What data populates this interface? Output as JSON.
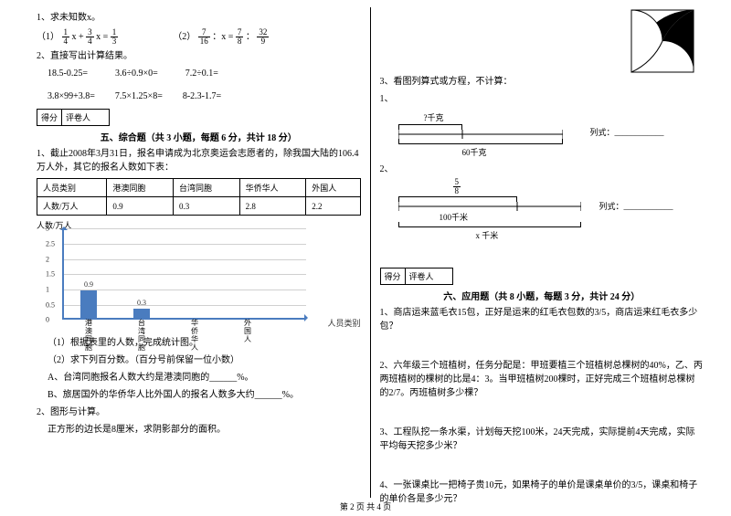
{
  "left": {
    "q1_title": "1、求未知数x。",
    "eq1_label": "（1）",
    "eq1_f1_n": "1",
    "eq1_f1_d": "4",
    "eq1_mid": " x + ",
    "eq1_f2_n": "3",
    "eq1_f2_d": "4",
    "eq1_eq": " x = ",
    "eq1_f3_n": "1",
    "eq1_f3_d": "3",
    "eq2_label": "（2）",
    "eq2_f1_n": "7",
    "eq2_f1_d": "16",
    "eq2_mid": " ：x = ",
    "eq2_f2_n": "7",
    "eq2_f2_d": "8",
    "eq2_colon": "：",
    "eq2_f3_n": "32",
    "eq2_f3_d": "9",
    "q2_title": "2、直接写出计算结果。",
    "calc_row1a": "18.5-0.25=",
    "calc_row1b": "3.6÷0.9×0=",
    "calc_row1c": "7.2÷0.1=",
    "calc_row2a": "3.8×99+3.8=",
    "calc_row2b": "7.5×1.25×8=",
    "calc_row2c": "8-2.3-1.7=",
    "score_a": "得分",
    "score_b": "评卷人",
    "section5": "五、综合题（共 3 小题，每题 6 分，共计 18 分）",
    "s5_q1": "1、截止2008年3月31日，报名申请成为北京奥运会志愿者的，除我国大陆的106.4万人外，其它的报名人数如下表：",
    "table_h1": "人员类别",
    "table_h2": "港澳同胞",
    "table_h3": "台湾同胞",
    "table_h4": "华侨华人",
    "table_h5": "外国人",
    "table_r1": "人数/万人",
    "table_v1": "0.9",
    "table_v2": "0.3",
    "table_v3": "2.8",
    "table_v4": "2.2",
    "chart_ylabel": "人数/万人",
    "chart_xlabel": "人员类别",
    "chart_ticks": [
      "0",
      "0.5",
      "1",
      "1.5",
      "2",
      "2.5",
      "3"
    ],
    "chart_cats": [
      "港澳同胞",
      "台湾同胞",
      "华侨华人",
      "外国人"
    ],
    "chart_values": [
      0.9,
      0.3,
      null,
      null
    ],
    "chart_labels": [
      "0.9",
      "0.3",
      "",
      ""
    ],
    "chart_ymax": 3,
    "chart_bar_color": "#4a7cbf",
    "chart_axis_color": "#4a7cbf",
    "sub1": "（1）根据表里的人数，完成统计图。",
    "sub2": "（2）求下列百分数。（百分号前保留一位小数）",
    "subA": "A、台湾同胞报名人数大约是港澳同胞的______%。",
    "subB": "B、旅居国外的华侨华人比外国人的报名人数多大约______%。",
    "s5_q2": "2、图形与计算。",
    "s5_q2_text": "正方形的边长是8厘米，求阴影部分的面积。"
  },
  "right": {
    "q3_title": "3、看图列算式或方程，不计算：",
    "d1_label": "1、",
    "d1_top": "?千克",
    "d1_bottom": "60千克",
    "d1_eq": "列式：____________",
    "d2_label": "2、",
    "d2_frac_n": "5",
    "d2_frac_d": "8",
    "d2_mid": "100千米",
    "d2_bottom": "x 千米",
    "d2_eq": "列式：____________",
    "score_a": "得分",
    "score_b": "评卷人",
    "section6": "六、应用题（共 8 小题，每题 3 分，共计 24 分）",
    "q1": "1、商店运来蓝毛衣15包，正好是运来的红毛衣包数的3/5，商店运来红毛衣多少包？",
    "q2": "2、六年级三个班植树，任务分配是：甲班要植三个班植树总棵树的40%，乙、丙两班植树的棵树的比是4：3。当甲班植树200棵时，正好完成三个班植树总棵树的2/7。丙班植树多少棵？",
    "q3": "3、工程队挖一条水渠，计划每天挖100米，24天完成，实际提前4天完成，实际平均每天挖多少米？",
    "q4": "4、一张课桌比一把椅子贵10元，如果椅子的单价是课桌单价的3/5，课桌和椅子的单价各是多少元？"
  },
  "footer": "第 2 页 共 4 页"
}
